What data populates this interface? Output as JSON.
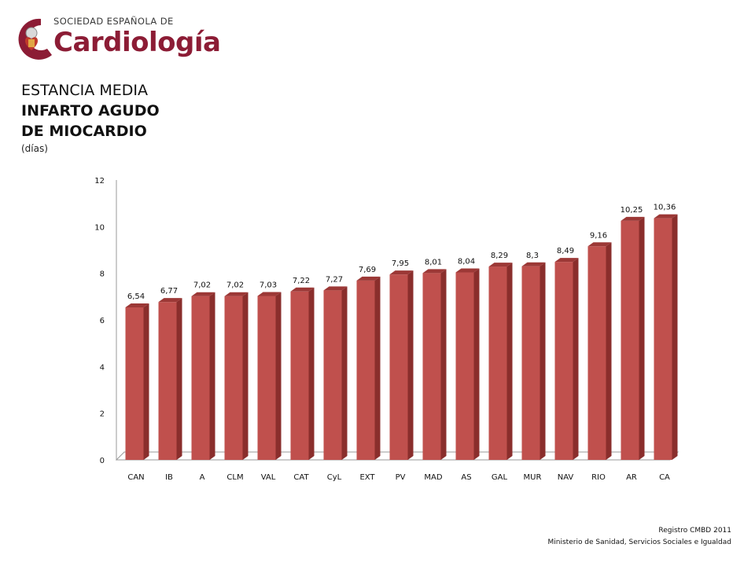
{
  "logo": {
    "org_top": "SOCIEDAD ESPAÑOLA DE",
    "org_main": "Cardiología"
  },
  "title": {
    "line1": "ESTANCIA MEDIA",
    "line2": "INFARTO AGUDO",
    "line3": "DE MIOCARDIO",
    "unit": "(días)"
  },
  "colors": {
    "bar_front": "#c0504d",
    "bar_side": "#8a2e2c",
    "bar_top": "#9c3836",
    "brand": "#8c1c35"
  },
  "chart_data": {
    "type": "bar",
    "categories": [
      "CAN",
      "IB",
      "A",
      "CLM",
      "VAL",
      "CAT",
      "CyL",
      "EXT",
      "PV",
      "MAD",
      "AS",
      "GAL",
      "MUR",
      "NAV",
      "RIO",
      "AR",
      "CA"
    ],
    "values": [
      6.54,
      6.77,
      7.02,
      7.02,
      7.03,
      7.22,
      7.27,
      7.69,
      7.95,
      8.01,
      8.04,
      8.29,
      8.3,
      8.49,
      9.16,
      10.25,
      10.36
    ],
    "value_labels": [
      "6,54",
      "6,77",
      "7,02",
      "7,02",
      "7,03",
      "7,22",
      "7,27",
      "7,69",
      "7,95",
      "8,01",
      "8,04",
      "8,29",
      "8,3",
      "8,49",
      "9,16",
      "10,25",
      "10,36"
    ],
    "yticks": [
      0,
      2,
      4,
      6,
      8,
      10,
      12
    ],
    "ylim": [
      0,
      12
    ],
    "grid": false
  },
  "footer": {
    "line1": "Registro CMBD 2011",
    "line2": "Ministerio de Sanidad, Servicios Sociales e Igualdad"
  }
}
